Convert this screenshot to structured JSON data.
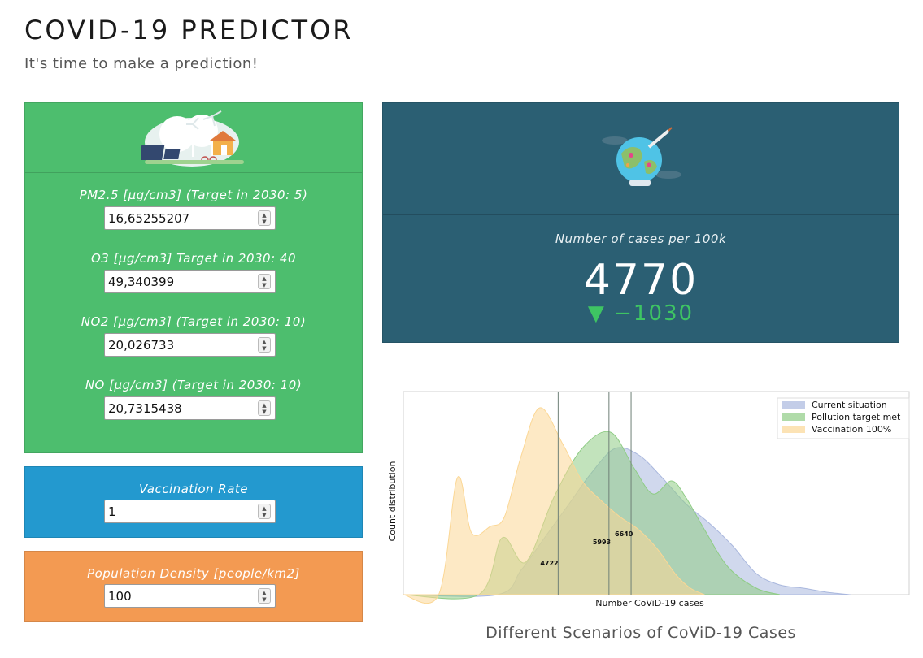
{
  "header": {
    "title": "COVID-19 PREDICTOR",
    "subtitle": "It's time to make a prediction!"
  },
  "inputs": {
    "pm25": {
      "label": "PM2.5 [µg/cm3] (Target in 2030: 5)",
      "value": "16,65255207"
    },
    "o3": {
      "label": "O3 [µg/cm3] Target in 2030: 40",
      "value": "49,340399"
    },
    "no2": {
      "label": "NO2 [µg/cm3] (Target in 2030: 10)",
      "value": "20,026733"
    },
    "no": {
      "label": "NO [µg/cm3] (Target in 2030: 10)",
      "value": "20,7315438"
    },
    "vaccination": {
      "label": "Vaccination Rate",
      "value": "1"
    },
    "density": {
      "label": "Population Density [people/km2]",
      "value": "100"
    }
  },
  "result": {
    "label": "Number of cases per 100k",
    "value": "4770",
    "delta": "▼ −1030",
    "delta_color": "#3ec463"
  },
  "colors": {
    "green_panel": "#4dbe6e",
    "blue_panel": "#2399cf",
    "orange_panel": "#f39a52",
    "teal_panel": "#2b5f73"
  },
  "chart_caption": "Different Scenarios of CoViD-19 Cases",
  "chart_data": {
    "type": "area",
    "xlabel": "Number CoViD-19 cases",
    "ylabel": "Count distribution",
    "grid": false,
    "legend_position": "top-right",
    "series": [
      {
        "name": "Current situation",
        "color": "#aab8de",
        "x": [
          0,
          4000,
          5000,
          6000,
          7000,
          8000,
          9000,
          10000,
          11000,
          12000,
          13000,
          14000,
          15000,
          16000,
          17000,
          18000,
          19000
        ],
        "values": [
          0,
          0,
          0.15,
          0.35,
          0.55,
          0.75,
          0.9,
          0.86,
          0.72,
          0.56,
          0.44,
          0.3,
          0.13,
          0.06,
          0.04,
          0.015,
          0
        ]
      },
      {
        "name": "Pollution target met",
        "color": "#8fcc85",
        "x": [
          0,
          3200,
          4200,
          5200,
          6400,
          7600,
          8800,
          9800,
          10600,
          11400,
          12000,
          12800,
          13800,
          15000,
          16000
        ],
        "values": [
          0,
          0,
          0.35,
          0.2,
          0.6,
          0.9,
          1.0,
          0.78,
          0.62,
          0.7,
          0.6,
          0.4,
          0.17,
          0.04,
          0
        ]
      },
      {
        "name": "Vaccination 100%",
        "color": "#fbd795",
        "x": [
          0,
          1500,
          2300,
          2900,
          3700,
          4300,
          5000,
          5800,
          6800,
          7600,
          8400,
          9200,
          10000,
          10800,
          11600,
          12200,
          12800
        ],
        "values": [
          0,
          0,
          0.72,
          0.38,
          0.42,
          0.48,
          0.85,
          1.15,
          0.92,
          0.7,
          0.58,
          0.48,
          0.4,
          0.28,
          0.12,
          0.04,
          0
        ]
      }
    ],
    "markers": [
      {
        "x": 6580,
        "label": "4722"
      },
      {
        "x": 8740,
        "label": "5993"
      },
      {
        "x": 9680,
        "label": "6640"
      }
    ],
    "xlim": [
      0,
      21500
    ],
    "ylim": [
      0,
      1.25
    ]
  }
}
